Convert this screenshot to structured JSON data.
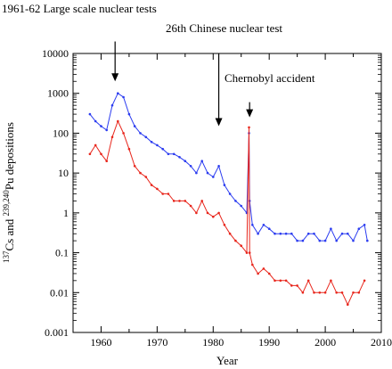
{
  "chart_data": {
    "type": "line",
    "xlabel": "Year",
    "ylabel_parts": {
      "sup1": "137",
      "cs": "Cs and ",
      "sup2": "239,240",
      "pu": "Pu depositions"
    },
    "xlim": [
      1955,
      2010
    ],
    "ylim": [
      0.001,
      10000
    ],
    "yscale": "log",
    "x_ticks": [
      1960,
      1970,
      1980,
      1990,
      2000,
      2010
    ],
    "x_tick_labels": [
      "1960",
      "1970",
      "1980",
      "1990",
      "2000",
      "2010"
    ],
    "y_ticks": [
      10000,
      1000,
      100,
      10,
      1,
      0.1,
      0.01,
      0.001
    ],
    "y_tick_labels": [
      "10000",
      "1000",
      "100",
      "10",
      "1",
      "0.1",
      "0.01",
      "0.001"
    ],
    "grid": false,
    "colors": {
      "cs": "#2b3cf0",
      "pu": "#e8261c"
    },
    "series": [
      {
        "key": "cs",
        "x": [
          1958.0,
          1959.0,
          1960.0,
          1961.0,
          1962.0,
          1963.0,
          1964.0,
          1965.0,
          1966.0,
          1967.0,
          1968.0,
          1969.0,
          1970.0,
          1971.0,
          1972.0,
          1973.0,
          1974.0,
          1975.0,
          1976.0,
          1977.0,
          1978.0,
          1979.0,
          1980.0,
          1981.0,
          1982.0,
          1983.0,
          1984.0,
          1985.0,
          1986.0,
          1986.4,
          1986.5,
          1987.0,
          1988.0,
          1989.0,
          1990.0,
          1991.0,
          1992.0,
          1993.0,
          1994.0,
          1995.0,
          1996.0,
          1997.0,
          1998.0,
          1999.0,
          2000.0,
          2001.0,
          2002.0,
          2003.0,
          2004.0,
          2005.0,
          2006.0,
          2007.0,
          2007.5
        ],
        "y": [
          300,
          200,
          150,
          120,
          500,
          1000,
          800,
          300,
          150,
          100,
          80,
          60,
          50,
          40,
          30,
          30,
          25,
          20,
          15,
          10,
          20,
          10,
          8,
          15,
          5,
          3,
          2,
          1.5,
          1,
          100,
          2,
          0.5,
          0.3,
          0.5,
          0.4,
          0.3,
          0.3,
          0.3,
          0.3,
          0.2,
          0.2,
          0.3,
          0.3,
          0.2,
          0.2,
          0.4,
          0.2,
          0.3,
          0.3,
          0.2,
          0.4,
          0.5,
          0.2
        ]
      },
      {
        "key": "pu",
        "x": [
          1958.0,
          1959.0,
          1960.0,
          1961.0,
          1962.0,
          1963.0,
          1964.0,
          1965.0,
          1966.0,
          1967.0,
          1968.0,
          1969.0,
          1970.0,
          1971.0,
          1972.0,
          1973.0,
          1974.0,
          1975.0,
          1976.0,
          1977.0,
          1978.0,
          1979.0,
          1980.0,
          1981.0,
          1982.0,
          1983.0,
          1984.0,
          1985.0,
          1986.0,
          1986.4,
          1986.5,
          1987.0,
          1988.0,
          1989.0,
          1990.0,
          1991.0,
          1992.0,
          1993.0,
          1994.0,
          1995.0,
          1996.0,
          1997.0,
          1998.0,
          1999.0,
          2000.0,
          2001.0,
          2002.0,
          2003.0,
          2004.0,
          2005.0,
          2006.0,
          2007.0
        ],
        "y": [
          30,
          50,
          30,
          20,
          80,
          200,
          100,
          40,
          15,
          10,
          8,
          5,
          4,
          3,
          3,
          2,
          2,
          2,
          1.5,
          1,
          2,
          1,
          0.8,
          1,
          0.5,
          0.3,
          0.2,
          0.15,
          0.1,
          140,
          0.1,
          0.05,
          0.03,
          0.04,
          0.03,
          0.02,
          0.02,
          0.02,
          0.015,
          0.015,
          0.01,
          0.02,
          0.01,
          0.01,
          0.01,
          0.02,
          0.01,
          0.01,
          0.005,
          0.01,
          0.01,
          0.02
        ]
      }
    ],
    "annotations": [
      {
        "key": "a1961",
        "label": "1961-62 Large scale nuclear tests",
        "x": 1962.5,
        "y_from": 20000,
        "y_to": 2000
      },
      {
        "key": "a26",
        "label": "26th Chinese nuclear test",
        "x": 1981.0,
        "y_from": 10000,
        "y_to": 150
      },
      {
        "key": "achern",
        "label": "Chernobyl accident",
        "x": 1986.5,
        "y_from": 600,
        "y_to": 250
      }
    ]
  }
}
